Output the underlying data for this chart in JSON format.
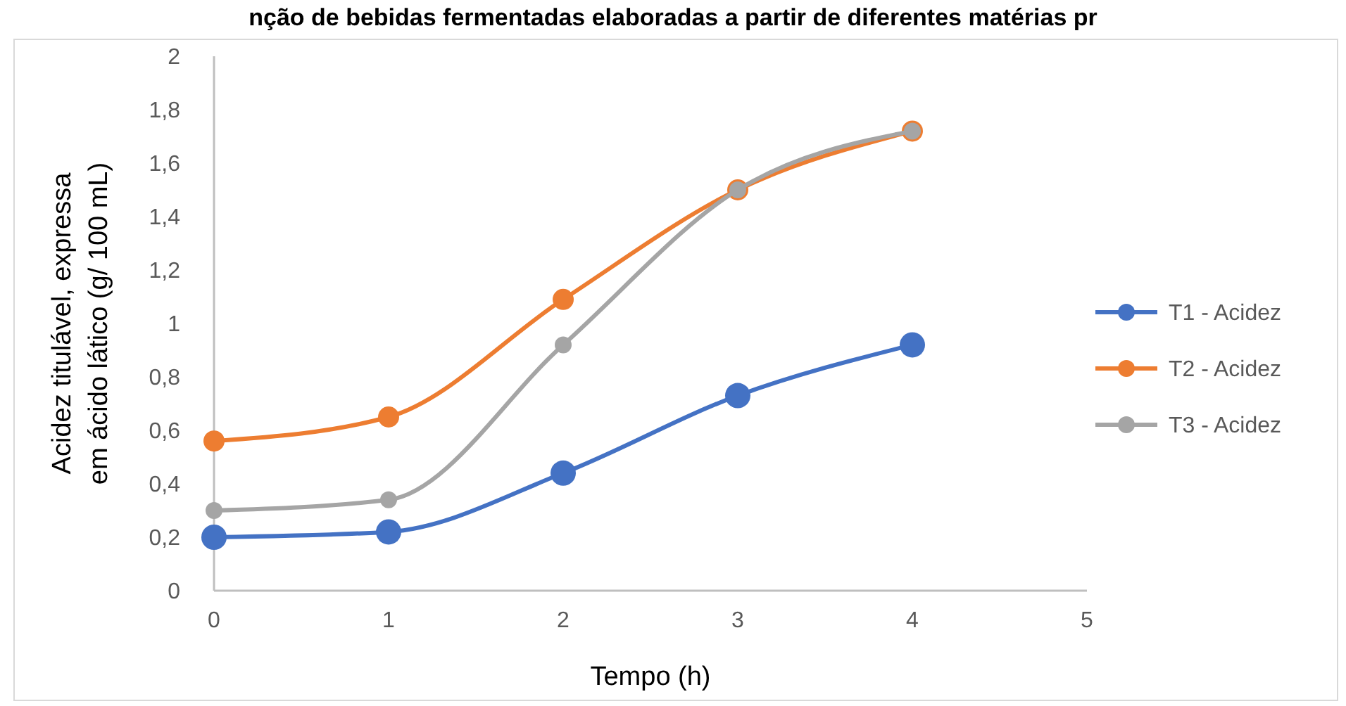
{
  "chart_data": {
    "type": "line",
    "title": "nção de bebidas fermentadas elaboradas a partir de diferentes matérias pr",
    "xlabel": "Tempo (h)",
    "ylabel": "Acidez titulável, expressa em ácido lático (g/ 100 mL)",
    "x": [
      0,
      1,
      2,
      3,
      4
    ],
    "xlim": [
      0,
      5
    ],
    "xticks": [
      0,
      1,
      2,
      3,
      4,
      5
    ],
    "ylim": [
      0,
      2
    ],
    "yticks": [
      0,
      {
        "value": 0.2,
        "label": "0,2"
      },
      {
        "value": 0.4,
        "label": "0,4"
      },
      {
        "value": 0.6,
        "label": "0,6"
      },
      {
        "value": 0.8,
        "label": "0,8"
      },
      1,
      {
        "value": 1.2,
        "label": "1,2"
      },
      {
        "value": 1.4,
        "label": "1,4"
      },
      {
        "value": 1.6,
        "label": "1,6"
      },
      {
        "value": 1.8,
        "label": "1,8"
      },
      2
    ],
    "grid": false,
    "legend": "right",
    "marker": "circle",
    "line_style": "solid",
    "series": [
      {
        "name": "T1 - Acidez",
        "color": "#4472c4",
        "values": [
          0.2,
          0.22,
          0.44,
          0.73,
          0.92
        ]
      },
      {
        "name": "T2 - Acidez",
        "color": "#ed7d31",
        "values": [
          0.56,
          0.65,
          1.09,
          1.5,
          1.72
        ]
      },
      {
        "name": "T3 - Acidez",
        "color": "#a5a5a5",
        "values": [
          0.3,
          0.34,
          0.92,
          1.5,
          1.72
        ]
      }
    ]
  }
}
